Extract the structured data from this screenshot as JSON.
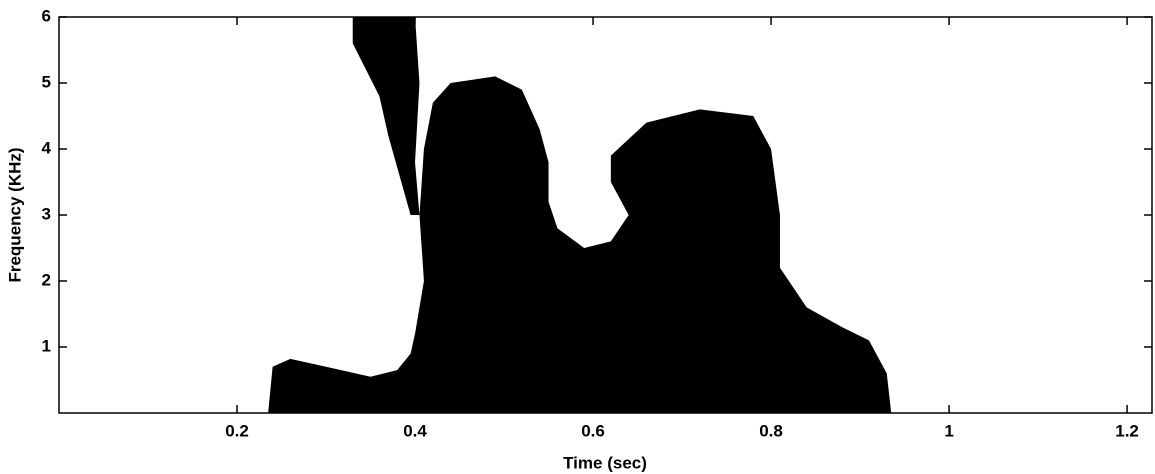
{
  "chart_data": {
    "type": "spectrogram",
    "x_label": "Time (sec)",
    "y_label": "Frequency (KHz)",
    "xlim": [
      0,
      1.228
    ],
    "ylim": [
      0,
      6
    ],
    "xticks": [
      0.2,
      0.4,
      0.6,
      0.8,
      1,
      1.2
    ],
    "yticks": [
      1,
      2,
      3,
      4,
      5,
      6
    ],
    "color": "#000000",
    "grid": false,
    "regions": [
      {
        "x": [
          0.235,
          0.24,
          0.26,
          0.3,
          0.35,
          0.38,
          0.395,
          0.4,
          0.41,
          0.405,
          0.41,
          0.42,
          0.44,
          0.49,
          0.52,
          0.54,
          0.55,
          0.55,
          0.56,
          0.59,
          0.62,
          0.64,
          0.62,
          0.62,
          0.66,
          0.72,
          0.78,
          0.8,
          0.81,
          0.81,
          0.84,
          0.88,
          0.91,
          0.93,
          0.935
        ],
        "y": [
          0,
          0.7,
          0.82,
          0.7,
          0.55,
          0.65,
          0.9,
          1.2,
          2,
          3,
          4,
          4.7,
          5,
          5.1,
          4.9,
          4.3,
          3.8,
          3.2,
          2.8,
          2.5,
          2.6,
          3,
          3.5,
          3.9,
          4.4,
          4.6,
          4.5,
          4,
          3,
          2.2,
          1.6,
          1.3,
          1.1,
          0.6,
          0
        ]
      },
      {
        "x": [
          0.395,
          0.37,
          0.36,
          0.33,
          0.33,
          0.4,
          0.405,
          0.4,
          0.405
        ],
        "y": [
          3,
          4.2,
          4.8,
          5.6,
          6,
          6,
          5,
          3.8,
          3
        ]
      }
    ]
  }
}
